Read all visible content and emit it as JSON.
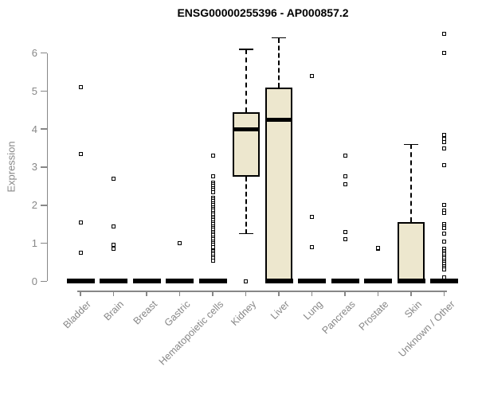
{
  "title": "ENSG00000255396 - AP000857.2",
  "chart_data": {
    "type": "boxplot",
    "title": "ENSG00000255396 - AP000857.2",
    "xlabel": "",
    "ylabel": "Expression",
    "ylim": [
      0,
      6.5
    ],
    "yticks": [
      0,
      1,
      2,
      3,
      4,
      5,
      6
    ],
    "grid": false,
    "legend": "none",
    "categories": [
      "Bladder",
      "Brain",
      "Breast",
      "Gastric",
      "Hematopoietic cells",
      "Kidney",
      "Liver",
      "Lung",
      "Pancreas",
      "Prostate",
      "Skin",
      "Unknown / Other"
    ],
    "boxes": [
      {
        "category": "Bladder",
        "q1": 0,
        "median": 0,
        "q3": 0,
        "whisker_low": 0,
        "whisker_high": 0,
        "outliers": [
          5.1,
          3.35,
          1.55,
          0.75
        ]
      },
      {
        "category": "Brain",
        "q1": 0,
        "median": 0,
        "q3": 0,
        "whisker_low": 0,
        "whisker_high": 0,
        "outliers": [
          2.7,
          1.45,
          0.95,
          0.85
        ]
      },
      {
        "category": "Breast",
        "q1": 0,
        "median": 0,
        "q3": 0,
        "whisker_low": 0,
        "whisker_high": 0,
        "outliers": []
      },
      {
        "category": "Gastric",
        "q1": 0,
        "median": 0,
        "q3": 0,
        "whisker_low": 0,
        "whisker_high": 0,
        "outliers": [
          1.0
        ]
      },
      {
        "category": "Hematopoietic cells",
        "q1": 0,
        "median": 0,
        "q3": 0,
        "whisker_low": 0,
        "whisker_high": 0,
        "outliers": [
          3.3,
          2.75,
          2.6,
          2.55,
          2.5,
          2.45,
          2.4,
          2.35,
          2.2,
          2.15,
          2.1,
          2.05,
          2.0,
          1.95,
          1.9,
          1.85,
          1.8,
          1.75,
          1.7,
          1.65,
          1.6,
          1.55,
          1.5,
          1.45,
          1.4,
          1.35,
          1.3,
          1.25,
          1.2,
          1.15,
          1.1,
          1.05,
          1.0,
          0.95,
          0.9,
          0.8,
          0.75,
          0.7,
          0.65,
          0.6,
          0.55
        ]
      },
      {
        "category": "Kidney",
        "q1": 2.75,
        "median": 4.0,
        "q3": 4.45,
        "whisker_low": 1.25,
        "whisker_high": 6.1,
        "outliers": [
          0
        ]
      },
      {
        "category": "Liver",
        "q1": 0,
        "median": 4.25,
        "q3": 5.1,
        "whisker_low": 0,
        "whisker_high": 6.4,
        "outliers": []
      },
      {
        "category": "Lung",
        "q1": 0,
        "median": 0,
        "q3": 0,
        "whisker_low": 0,
        "whisker_high": 0,
        "outliers": [
          5.4,
          1.7,
          0.9
        ]
      },
      {
        "category": "Pancreas",
        "q1": 0,
        "median": 0,
        "q3": 0,
        "whisker_low": 0,
        "whisker_high": 0,
        "outliers": [
          3.3,
          2.75,
          2.55,
          1.3,
          1.1
        ]
      },
      {
        "category": "Prostate",
        "q1": 0,
        "median": 0,
        "q3": 0,
        "whisker_low": 0,
        "whisker_high": 0,
        "outliers": [
          0.85,
          0.87
        ]
      },
      {
        "category": "Skin",
        "q1": 0,
        "median": 0,
        "q3": 1.55,
        "whisker_low": 0,
        "whisker_high": 3.6,
        "outliers": []
      },
      {
        "category": "Unknown / Other",
        "q1": 0,
        "median": 0,
        "q3": 0,
        "whisker_low": 0,
        "whisker_high": 0,
        "outliers": [
          6.5,
          6.0,
          3.85,
          3.75,
          3.65,
          3.5,
          3.05,
          2.0,
          1.85,
          1.8,
          1.5,
          1.45,
          1.4,
          1.25,
          1.05,
          0.85,
          0.8,
          0.75,
          0.7,
          0.65,
          0.6,
          0.55,
          0.5,
          0.45,
          0.4,
          0.35,
          0.3,
          0.1
        ]
      }
    ],
    "colors": {
      "box_fill": "#ede7ce",
      "box_border": "#000000",
      "median": "#000000",
      "axis": "#878787",
      "label": "#878787",
      "title": "#000000"
    }
  }
}
